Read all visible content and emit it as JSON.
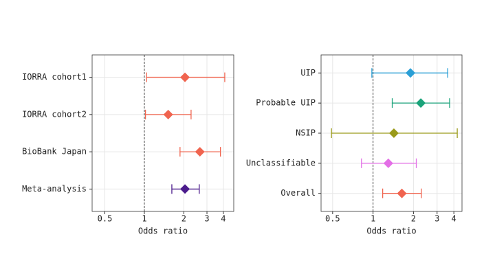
{
  "chart_data": [
    {
      "type": "forest",
      "xlabel": "Odds ratio",
      "log_x": true,
      "grid": true,
      "reference": 1,
      "categories": [
        "IORRA cohort1",
        "IORRA cohort2",
        "BioBank Japan",
        "Meta-analysis"
      ],
      "values": [
        2.04,
        1.52,
        2.65,
        2.04
      ],
      "lower": [
        1.04,
        1.02,
        1.87,
        1.62
      ],
      "upper": [
        4.1,
        2.27,
        3.8,
        2.62
      ],
      "colors": [
        "#f0644f",
        "#f0644f",
        "#f0644f",
        "#4b1b8c"
      ],
      "xlim": [
        0.4,
        4.8
      ],
      "xticks": [
        0.5,
        1,
        2,
        3,
        4
      ]
    },
    {
      "type": "forest",
      "xlabel": "Odds ratio",
      "log_x": true,
      "grid": true,
      "reference": 1,
      "categories": [
        "UIP",
        "Probable UIP",
        "NSIP",
        "Unclassifiable",
        "Overall"
      ],
      "values": [
        1.9,
        2.27,
        1.43,
        1.3,
        1.64
      ],
      "lower": [
        0.98,
        1.39,
        0.49,
        0.82,
        1.18
      ],
      "upper": [
        3.6,
        3.72,
        4.24,
        2.1,
        2.29
      ],
      "colors": [
        "#2a9fd6",
        "#1aa37a",
        "#9a9a1a",
        "#e36ee6",
        "#f0644f"
      ],
      "xlim": [
        0.41,
        4.6
      ],
      "xticks": [
        0.5,
        1,
        2,
        3,
        4
      ]
    }
  ]
}
